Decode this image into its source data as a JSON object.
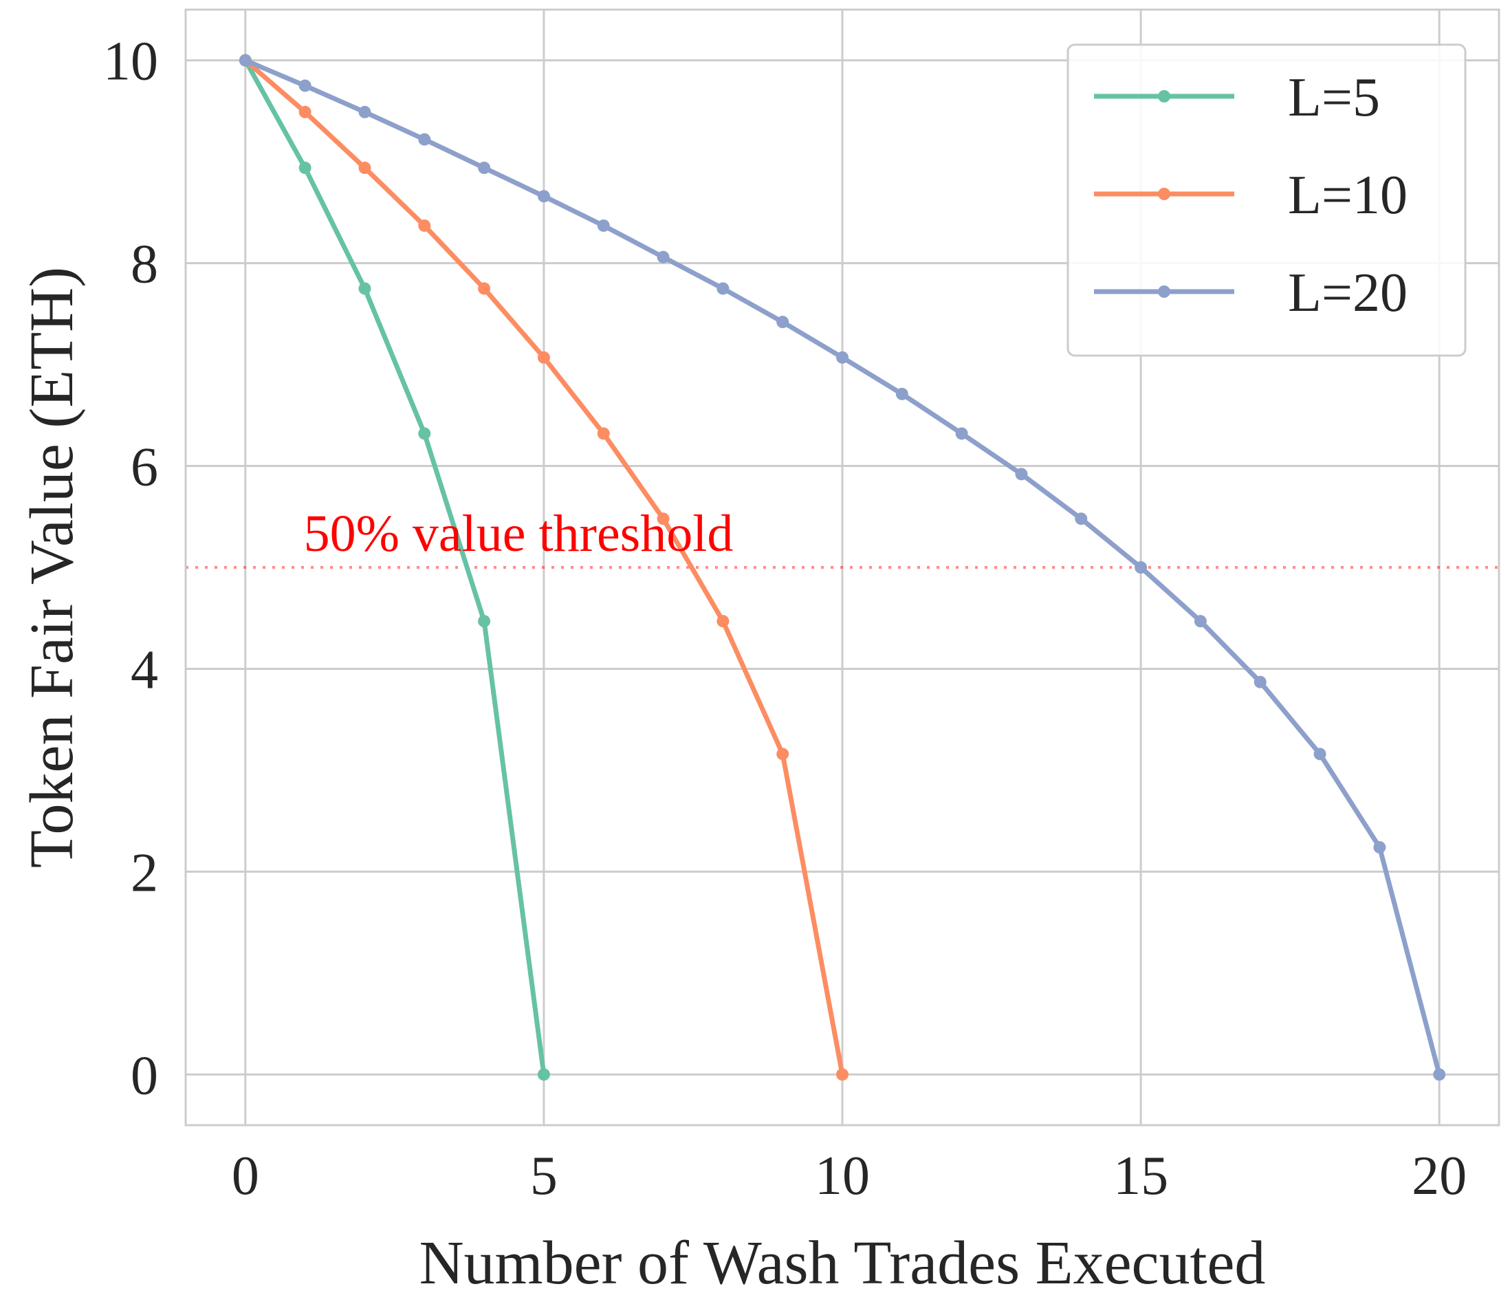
{
  "chart_data": {
    "type": "line",
    "xlabel": "Number of Wash Trades Executed",
    "ylabel": "Token Fair Value (ETH)",
    "xlim": [
      -1,
      21
    ],
    "ylim": [
      -0.5,
      10.5
    ],
    "xticks": [
      0,
      5,
      10,
      15,
      20
    ],
    "yticks": [
      0,
      2,
      4,
      6,
      8,
      10
    ],
    "grid": true,
    "legend_position": "top-right",
    "series": [
      {
        "name": "L=5",
        "color": "#66c2a5",
        "x": [
          0,
          1,
          2,
          3,
          4,
          5
        ],
        "y": [
          10,
          8.94,
          7.75,
          6.32,
          4.47,
          0
        ]
      },
      {
        "name": "L=10",
        "color": "#fc8d62",
        "x": [
          0,
          1,
          2,
          3,
          4,
          5,
          6,
          7,
          8,
          9,
          10
        ],
        "y": [
          10,
          9.49,
          8.94,
          8.37,
          7.75,
          7.07,
          6.32,
          5.48,
          4.47,
          3.16,
          0
        ]
      },
      {
        "name": "L=20",
        "color": "#8da0cb",
        "x": [
          0,
          1,
          2,
          3,
          4,
          5,
          6,
          7,
          8,
          9,
          10,
          11,
          12,
          13,
          14,
          15,
          16,
          17,
          18,
          19,
          20
        ],
        "y": [
          10,
          9.75,
          9.49,
          9.22,
          8.94,
          8.66,
          8.37,
          8.06,
          7.75,
          7.42,
          7.07,
          6.71,
          6.32,
          5.92,
          5.48,
          5.0,
          4.47,
          3.87,
          3.16,
          2.24,
          0
        ]
      }
    ],
    "threshold": {
      "y": 5,
      "label": "50% value threshold",
      "color": "#ff0000",
      "style": "dotted"
    }
  }
}
